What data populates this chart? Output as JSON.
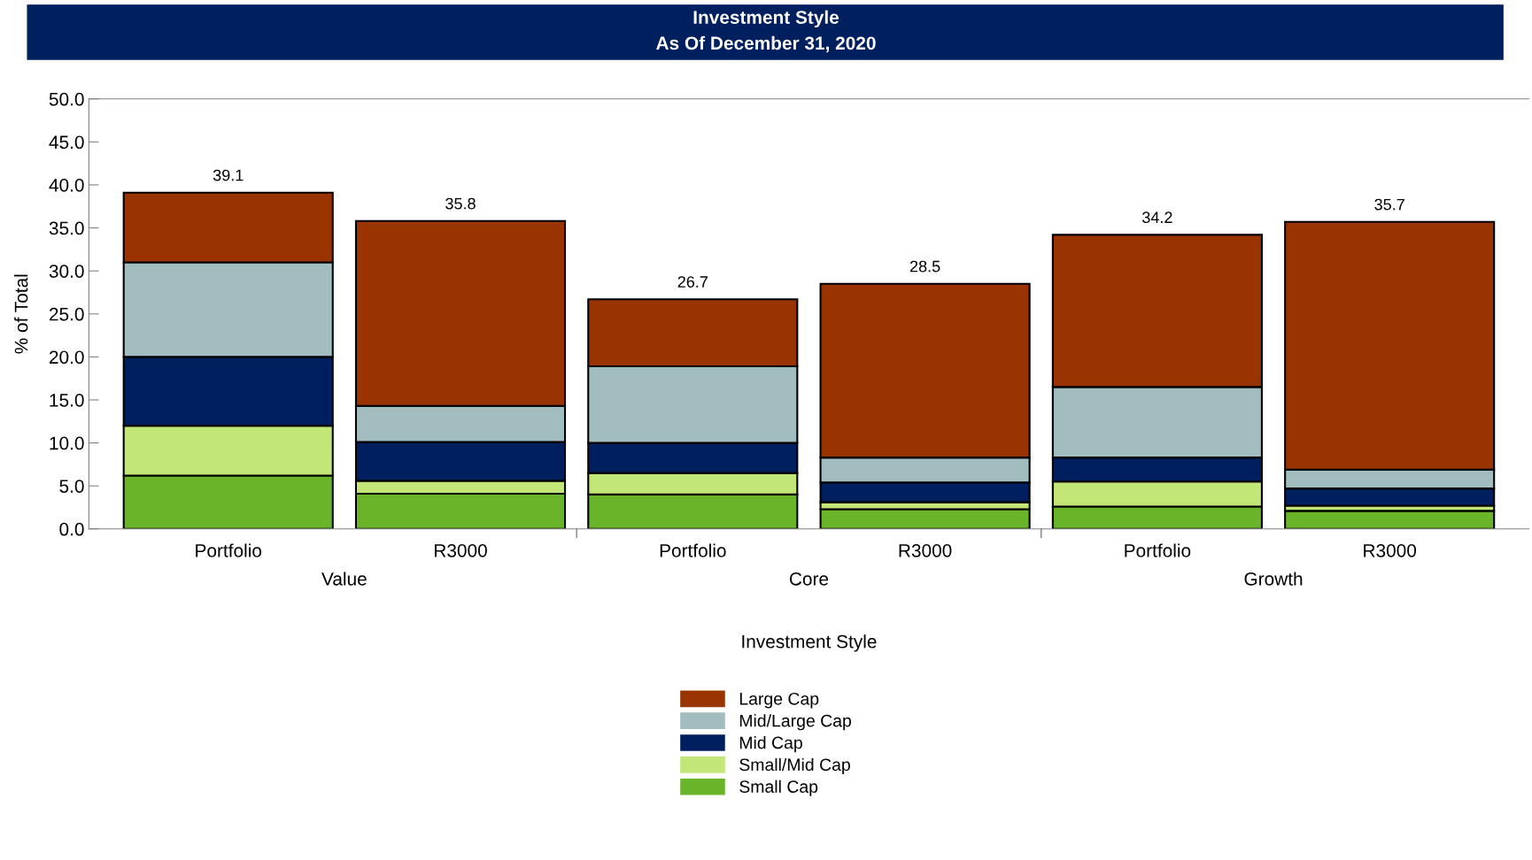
{
  "chart_data": {
    "type": "bar",
    "title": "Investment Style",
    "subtitle": "As Of December 31, 2020",
    "xlabel": "Investment Style",
    "ylabel": "% of Total",
    "categories": [
      "Portfolio",
      "R3000",
      "Portfolio",
      "R3000",
      "Portfolio",
      "R3000"
    ],
    "annotations": [
      "Value",
      "Core",
      "Growth"
    ],
    "stacked": true,
    "series": [
      {
        "name": "Small Cap",
        "color": "#6ab42a",
        "values": [
          6.2,
          4.1,
          4.0,
          2.3,
          2.6,
          2.1
        ]
      },
      {
        "name": "Small/Mid Cap",
        "color": "#c2e776",
        "values": [
          5.8,
          1.5,
          2.5,
          0.8,
          2.9,
          0.6
        ]
      },
      {
        "name": "Mid Cap",
        "color": "#001f5f",
        "values": [
          8.0,
          4.5,
          3.5,
          2.3,
          2.8,
          2.0
        ]
      },
      {
        "name": "Mid/Large Cap",
        "color": "#a2bdc0",
        "values": [
          11.0,
          4.2,
          8.9,
          2.9,
          8.2,
          2.2
        ]
      },
      {
        "name": "Large Cap",
        "color": "#993300",
        "values": [
          8.1,
          21.5,
          7.8,
          20.2,
          17.7,
          28.8
        ]
      }
    ],
    "totals": [
      "39.1",
      "35.8",
      "26.7",
      "28.5",
      "34.2",
      "35.7"
    ],
    "ylim": [
      0,
      50
    ],
    "yticks": [
      {
        "value": 0,
        "label": "0.0"
      },
      {
        "value": 5,
        "label": "5.0"
      },
      {
        "value": 10,
        "label": "10.0"
      },
      {
        "value": 15,
        "label": "15.0"
      },
      {
        "value": 20,
        "label": "20.0"
      },
      {
        "value": 25,
        "label": "25.0"
      },
      {
        "value": 30,
        "label": "30.0"
      },
      {
        "value": 35,
        "label": "35.0"
      },
      {
        "value": 40,
        "label": "40.0"
      },
      {
        "value": 45,
        "label": "45.0"
      },
      {
        "value": 50,
        "label": "50.0"
      }
    ],
    "grid": false,
    "legend": "bottom"
  }
}
